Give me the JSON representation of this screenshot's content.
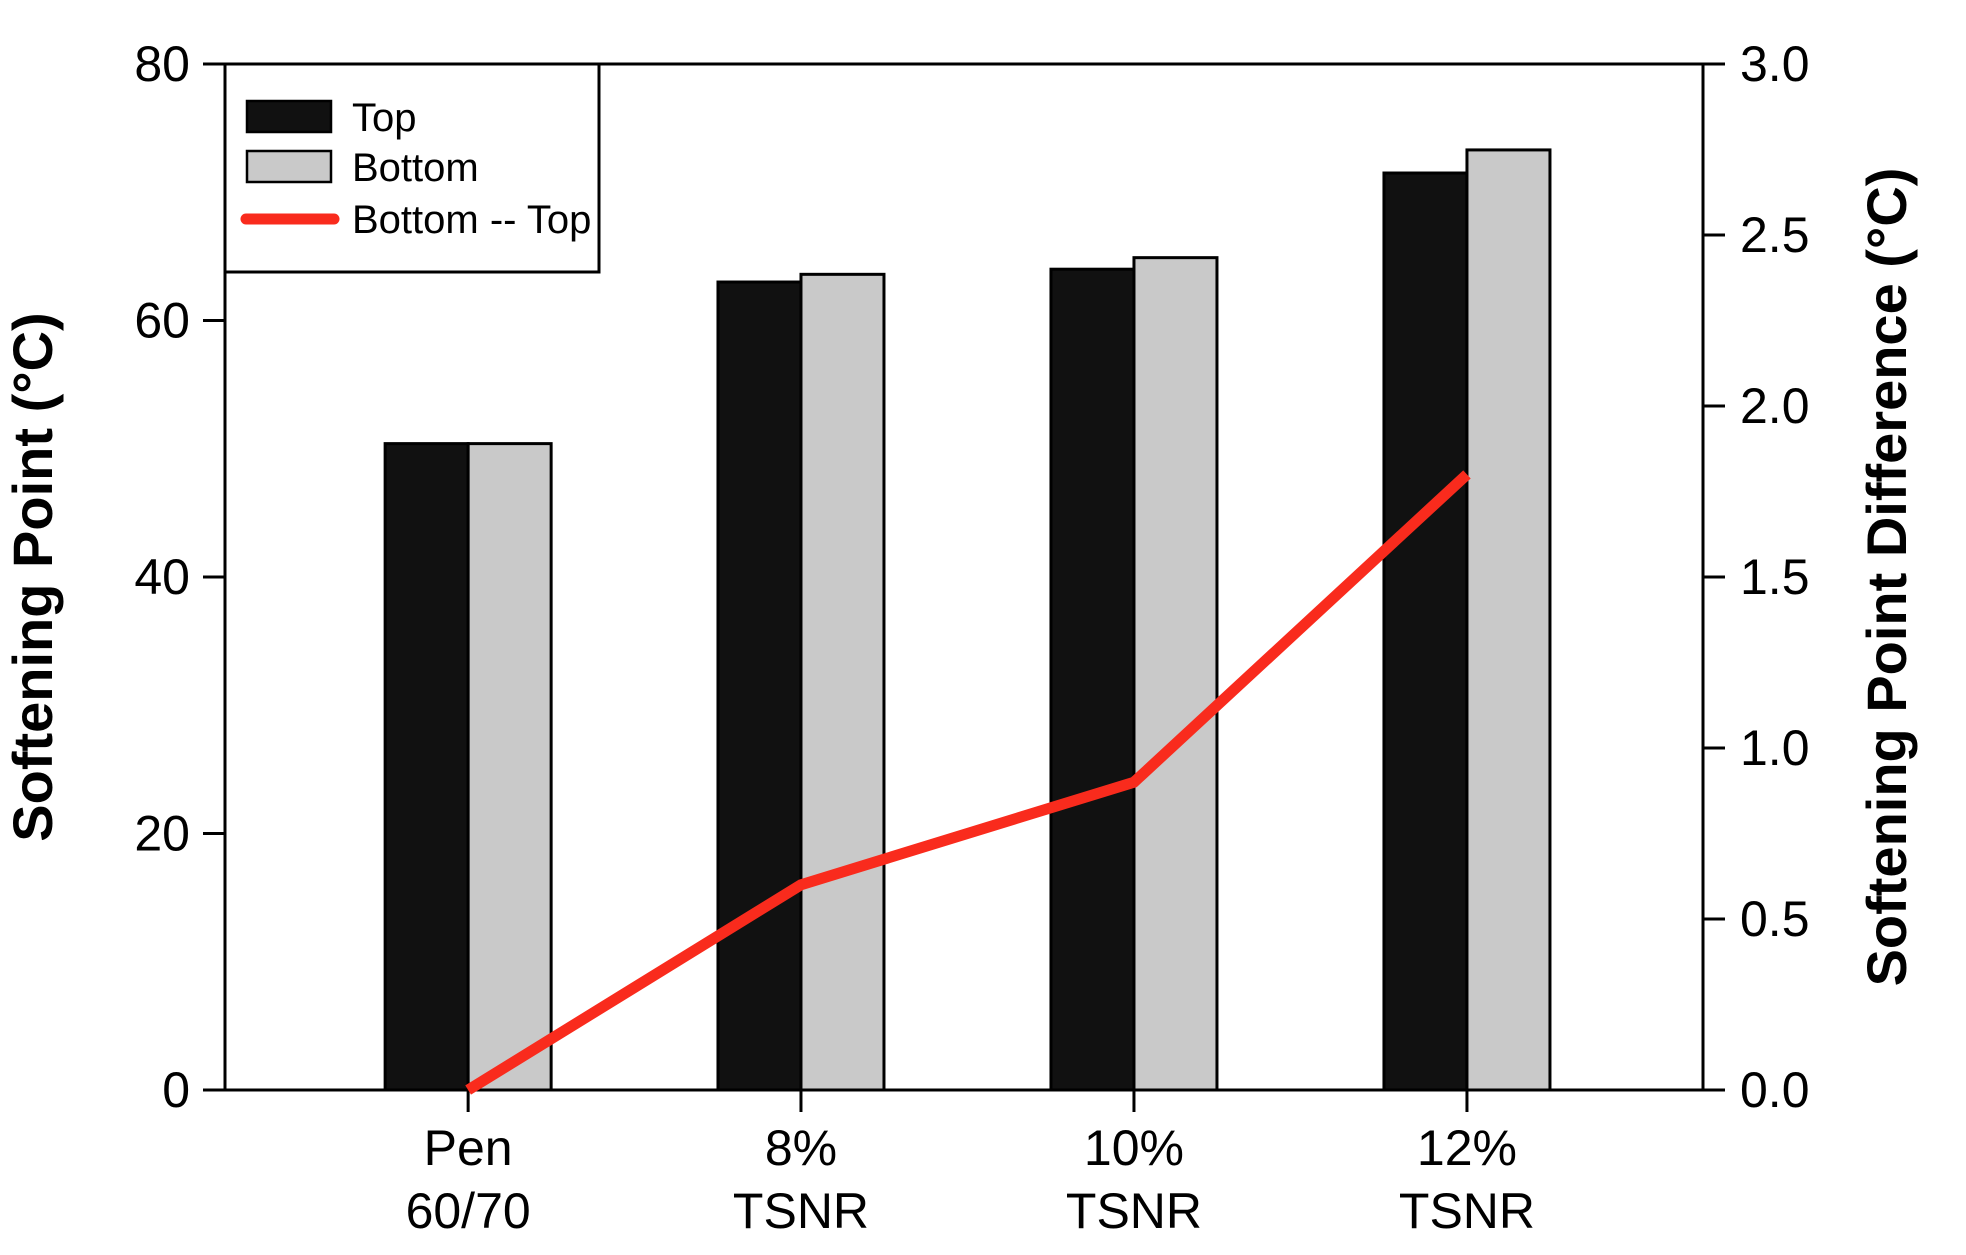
{
  "chart_data": {
    "type": "bar",
    "title": "",
    "categories": [
      {
        "label": "Pen 60/70",
        "label_lines": [
          "Pen",
          "60/70"
        ]
      },
      {
        "label": "8% TSNR",
        "label_lines": [
          "8%",
          "TSNR"
        ]
      },
      {
        "label": "10% TSNR",
        "label_lines": [
          "10%",
          "TSNR"
        ]
      },
      {
        "label": "12% TSNR",
        "label_lines": [
          "12%",
          "TSNR"
        ]
      }
    ],
    "series": [
      {
        "name": "Top",
        "kind": "bar",
        "axis": "left",
        "color": "#111111",
        "values": [
          50.4,
          63.0,
          64.0,
          71.5
        ]
      },
      {
        "name": "Bottom",
        "kind": "bar",
        "axis": "left",
        "color": "#c9c9c9",
        "values": [
          50.4,
          63.6,
          64.9,
          73.3
        ]
      },
      {
        "name": "Bottom -- Top",
        "kind": "line",
        "axis": "right",
        "color": "#f92b1d",
        "values": [
          0.0,
          0.6,
          0.9,
          1.8
        ]
      }
    ],
    "left_axis": {
      "label": "Softening Point (°C)",
      "min": 0,
      "max": 80,
      "ticks": [
        0,
        20,
        40,
        60,
        80
      ],
      "tick_labels": [
        "0",
        "20",
        "40",
        "60",
        "80"
      ]
    },
    "right_axis": {
      "label": "Softening Point Difference (°C)",
      "min": 0,
      "max": 3,
      "ticks": [
        0,
        0.5,
        1,
        1.5,
        2,
        2.5,
        3
      ],
      "tick_labels": [
        "0.0",
        "0.5",
        "1.0",
        "1.5",
        "2.0",
        "2.5",
        "3.0"
      ]
    },
    "legend": {
      "position": "top-left",
      "entries": [
        "Top",
        "Bottom",
        "Bottom -- Top"
      ]
    },
    "grid": false,
    "background": "#ffffff",
    "frame_color": "#000000"
  }
}
